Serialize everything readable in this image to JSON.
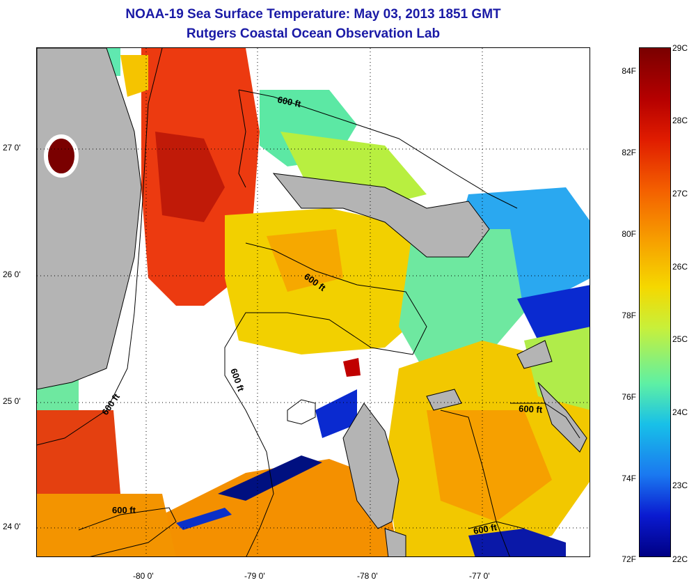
{
  "header": {
    "title": "NOAA-19 Sea Surface Temperature:  May 03, 2013 1851 GMT",
    "subtitle": "Rutgers Coastal Ocean Observation Lab"
  },
  "map": {
    "latitude_labels": [
      "27 0'",
      "26 0'",
      "25 0'",
      "24 0'"
    ],
    "longitude_labels": [
      "-80 0'",
      "-79 0'",
      "-78 0'",
      "-77 0'"
    ],
    "contour_labels": [
      "600 ft",
      "600 ft",
      "600 ft",
      "600 ft",
      "600 ft",
      "600 ft"
    ],
    "colors": {
      "land": "#b4b4b4",
      "no_data": "#ffffff",
      "grid": "#000000"
    }
  },
  "colorbar": {
    "fahrenheit_labels": [
      "84F",
      "82F",
      "80F",
      "78F",
      "76F",
      "74F",
      "72F"
    ],
    "celsius_labels": [
      "29C",
      "28C",
      "27C",
      "26C",
      "25C",
      "24C",
      "23C",
      "22C"
    ],
    "range_c": [
      22,
      29
    ],
    "range_f": [
      72,
      84
    ]
  }
}
